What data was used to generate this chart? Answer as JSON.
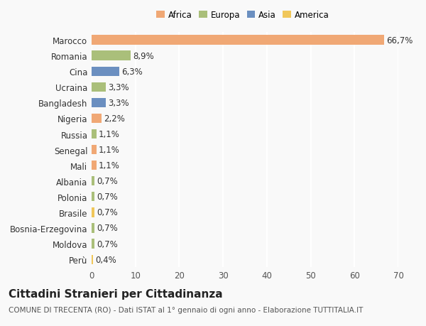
{
  "categories": [
    "Marocco",
    "Romania",
    "Cina",
    "Ucraina",
    "Bangladesh",
    "Nigeria",
    "Russia",
    "Senegal",
    "Mali",
    "Albania",
    "Polonia",
    "Brasile",
    "Bosnia-Erzegovina",
    "Moldova",
    "Perù"
  ],
  "values": [
    66.7,
    8.9,
    6.3,
    3.3,
    3.3,
    2.2,
    1.1,
    1.1,
    1.1,
    0.7,
    0.7,
    0.7,
    0.7,
    0.7,
    0.4
  ],
  "labels": [
    "66,7%",
    "8,9%",
    "6,3%",
    "3,3%",
    "3,3%",
    "2,2%",
    "1,1%",
    "1,1%",
    "1,1%",
    "0,7%",
    "0,7%",
    "0,7%",
    "0,7%",
    "0,7%",
    "0,4%"
  ],
  "continent": [
    "Africa",
    "Europa",
    "Asia",
    "Europa",
    "Asia",
    "Africa",
    "Europa",
    "Africa",
    "Africa",
    "Europa",
    "Europa",
    "America",
    "Europa",
    "Europa",
    "America"
  ],
  "colors": {
    "Africa": "#F0A875",
    "Europa": "#AABF7A",
    "Asia": "#6B8FC0",
    "America": "#F0C75A"
  },
  "legend_order": [
    "Africa",
    "Europa",
    "Asia",
    "America"
  ],
  "xlim": [
    0,
    70
  ],
  "xticks": [
    0,
    10,
    20,
    30,
    40,
    50,
    60,
    70
  ],
  "background_color": "#f9f9f9",
  "grid_color": "#ffffff",
  "title": "Cittadini Stranieri per Cittadinanza",
  "subtitle": "COMUNE DI TRECENTA (RO) - Dati ISTAT al 1° gennaio di ogni anno - Elaborazione TUTTITALIA.IT",
  "bar_height": 0.6,
  "label_fontsize": 8.5,
  "tick_fontsize": 8.5,
  "title_fontsize": 11,
  "subtitle_fontsize": 7.5
}
